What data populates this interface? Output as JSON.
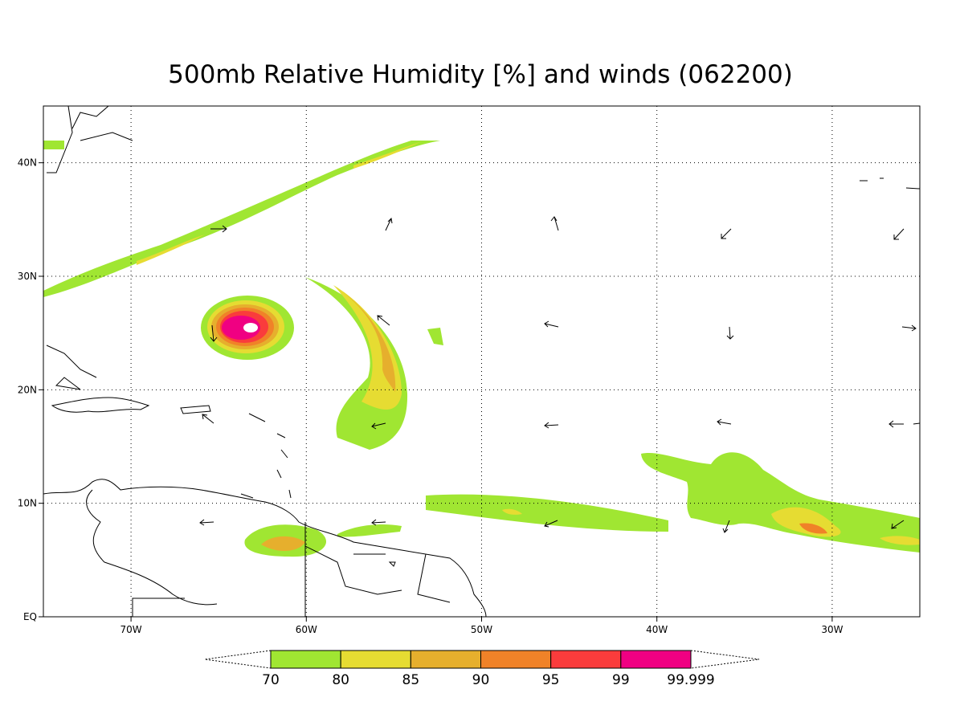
{
  "title": "500mb Relative Humidity [%] and winds (062200)",
  "map": {
    "xlim": [
      -75,
      -25
    ],
    "ylim": [
      0,
      45
    ],
    "xticks": [
      {
        "value": -70,
        "label": "70W"
      },
      {
        "value": -60,
        "label": "60W"
      },
      {
        "value": -50,
        "label": "50W"
      },
      {
        "value": -40,
        "label": "40W"
      },
      {
        "value": -30,
        "label": "30W"
      }
    ],
    "yticks": [
      {
        "value": 0,
        "label": "EQ"
      },
      {
        "value": 10,
        "label": "10N"
      },
      {
        "value": 20,
        "label": "20N"
      },
      {
        "value": 30,
        "label": "30N"
      },
      {
        "value": 40,
        "label": "40N"
      }
    ],
    "grid": true
  },
  "colorbar": {
    "levels": [
      70,
      80,
      85,
      90,
      95,
      99,
      99.999
    ],
    "colors": [
      "#a0e632",
      "#e6dc32",
      "#e6af2d",
      "#f08228",
      "#fa3c3c",
      "#f00082"
    ]
  }
}
